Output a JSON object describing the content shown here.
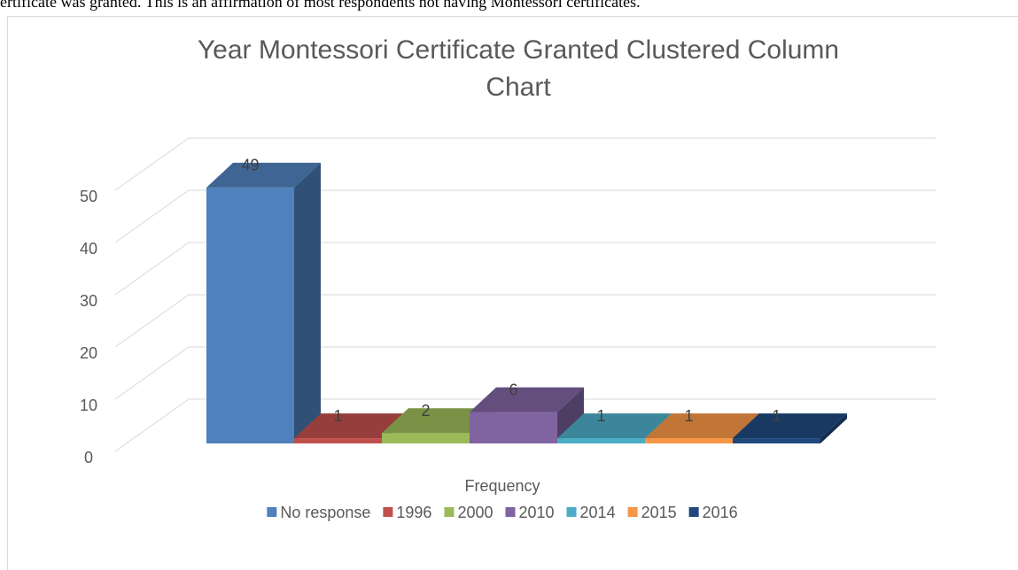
{
  "document_text": "ertificate was granted. This is an affirmation of most respondents not having Montessori certificates.",
  "chart_data": {
    "type": "bar3d",
    "title": [
      "Year Montessori Certificate Granted Clustered Column",
      "Chart"
    ],
    "categories": [
      "Frequency"
    ],
    "series": [
      {
        "name": "No response",
        "color": "#4f81bd",
        "values": [
          49
        ]
      },
      {
        "name": "1996",
        "color": "#c0504d",
        "values": [
          1
        ]
      },
      {
        "name": "2000",
        "color": "#9bbb59",
        "values": [
          2
        ]
      },
      {
        "name": "2010",
        "color": "#8064a2",
        "values": [
          6
        ]
      },
      {
        "name": "2014",
        "color": "#4bacc6",
        "values": [
          1
        ]
      },
      {
        "name": "2015",
        "color": "#f79646",
        "values": [
          1
        ]
      },
      {
        "name": "2016",
        "color": "#1f497d",
        "values": [
          1
        ]
      }
    ],
    "ylim": [
      0,
      50
    ],
    "yticks": [
      0,
      10,
      20,
      30,
      40,
      50
    ],
    "grid": true,
    "legend": "bottom"
  }
}
